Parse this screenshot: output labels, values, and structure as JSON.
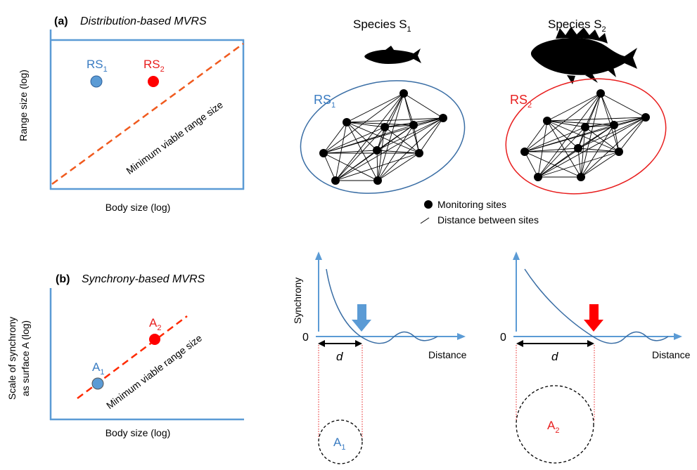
{
  "panel_a": {
    "tag": "(a)",
    "title": "Distribution-based MVRS",
    "y_axis_label": "Range size (log)",
    "x_axis_label": "Body size (log)",
    "line_label": "Minimum viable range size",
    "point_1": {
      "label": "RS",
      "sub": "1",
      "color": "#5b9bd5"
    },
    "point_2": {
      "label": "RS",
      "sub": "2",
      "color": "#ff0000"
    }
  },
  "panel_b": {
    "tag": "(b)",
    "title": "Synchrony-based MVRS",
    "y_axis_label_line1": "Scale of synchrony",
    "y_axis_label_line2": "as surface A (log)",
    "x_axis_label": "Body size (log)",
    "line_label": "Minimum viable range size",
    "point_1": {
      "label": "A",
      "sub": "1",
      "color": "#5b9bd5"
    },
    "point_2": {
      "label": "A",
      "sub": "2",
      "color": "#ff0000"
    }
  },
  "species": {
    "s1": {
      "label": "Species S",
      "sub": "1"
    },
    "s2": {
      "label": "Species S",
      "sub": "2"
    }
  },
  "networks": {
    "rs1": {
      "label": "RS",
      "sub": "1",
      "color": "#3a7cc2"
    },
    "rs2": {
      "label": "RS",
      "sub": "2",
      "color": "#e81e1e"
    }
  },
  "legend": {
    "sites": "Monitoring sites",
    "distance": "Distance between sites"
  },
  "synchrony_plots": {
    "y_label": "Synchrony",
    "x_label": "Distance",
    "zero_label": "0",
    "d_label": "d",
    "area_1": {
      "label": "A",
      "sub": "1"
    },
    "area_2": {
      "label": "A",
      "sub": "2"
    }
  },
  "colors": {
    "blue_axis": "#5b9bd5",
    "blue_text": "#3a7cc2",
    "red": "#e81e1e",
    "red_dash": "#ff2a00"
  }
}
